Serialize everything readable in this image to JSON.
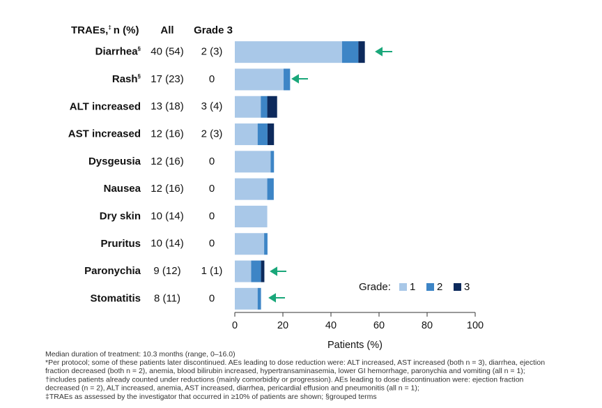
{
  "chart_data": {
    "type": "bar",
    "orientation": "horizontal",
    "stacked": true,
    "header": {
      "label": "TRAEs,",
      "label_note": "‡",
      "label_unit": "n (%)",
      "all": "All",
      "grade3": "Grade 3"
    },
    "categories": [
      "Diarrhea",
      "Rash",
      "ALT increased",
      "AST increased",
      "Dysgeusia",
      "Nausea",
      "Dry skin",
      "Pruritus",
      "Paronychia",
      "Stomatitis"
    ],
    "category_notes": [
      "§",
      "§",
      null,
      null,
      null,
      null,
      null,
      null,
      null,
      null
    ],
    "all_labels": [
      "40 (54)",
      "17 (23)",
      "13 (18)",
      "12 (16)",
      "12 (16)",
      "12 (16)",
      "10 (14)",
      "10 (14)",
      "9 (12)",
      "8 (11)"
    ],
    "grade3_labels": [
      "2 (3)",
      "0",
      "3 (4)",
      "2 (3)",
      "0",
      "0",
      "0",
      "0",
      "1 (1)",
      "0"
    ],
    "series": [
      {
        "name": "1",
        "color": "#a9c8e8",
        "values": [
          44.6,
          20.3,
          10.8,
          9.5,
          14.9,
          13.5,
          13.5,
          12.2,
          6.8,
          9.5
        ]
      },
      {
        "name": "2",
        "color": "#3d85c6",
        "values": [
          6.8,
          2.7,
          2.7,
          4.1,
          1.4,
          2.7,
          0,
          1.4,
          4.1,
          1.4
        ]
      },
      {
        "name": "3",
        "color": "#0d2a5c",
        "values": [
          2.7,
          0,
          4.1,
          2.7,
          0,
          0,
          0,
          0,
          1.4,
          0
        ]
      }
    ],
    "legend_title": "Grade:",
    "legend_position": "lower right",
    "xlabel": "Patients (%)",
    "xlim": [
      0,
      100
    ],
    "xticks": [
      0,
      20,
      40,
      60,
      80,
      100
    ],
    "footnotes": [
      "Median duration of treatment: 10.3 months (range, 0–16.0)",
      "*Per protocol; some of these patients later discontinued. AEs leading to dose reduction were: ALT increased, AST increased (both n = 3), diarrhea, ejection",
      "fraction decreased (both n = 2), anemia, blood bilirubin increased, hypertransaminasemia, lower GI hemorrhage, paronychia and vomiting (all n = 1);",
      "†includes patients already counted under reductions (mainly comorbidity or progression). AEs leading to dose discontinuation were: ejection fraction",
      "decreased (n = 2), ALT increased, anemia, AST increased, diarrhea, pericardial effusion and pneumonitis (all n = 1);",
      "‡TRAEs as assessed by the investigator that occurred in ≥10% of patients are shown; §grouped terms"
    ]
  }
}
